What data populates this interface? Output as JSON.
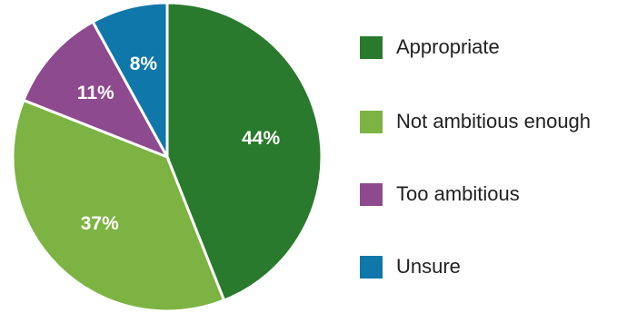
{
  "chart_data": {
    "type": "pie",
    "title": "",
    "start_angle_deg": 0,
    "direction": "clockwise",
    "legend_position": "right",
    "slices": [
      {
        "label": "Appropriate",
        "value": 44,
        "value_label": "44%",
        "color": "#2a7a2e"
      },
      {
        "label": "Not ambitious enough",
        "value": 37,
        "value_label": "37%",
        "color": "#7cb342"
      },
      {
        "label": "Too ambitious",
        "value": 11,
        "value_label": "11%",
        "color": "#8e4a8e"
      },
      {
        "label": "Unsure",
        "value": 8,
        "value_label": "8%",
        "color": "#0f77aa"
      }
    ]
  }
}
